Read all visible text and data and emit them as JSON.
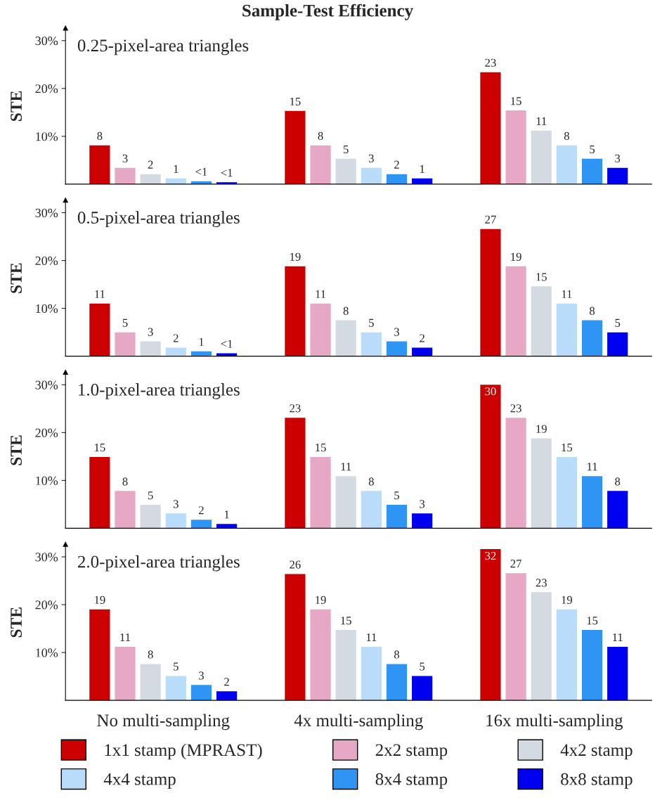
{
  "chart_data": [
    {
      "type": "bar",
      "title": "Sample-Test Efficiency",
      "ylabel": "STE",
      "annotations": [
        "0.25-pixel-area triangles"
      ],
      "categories": [
        null,
        null,
        null
      ],
      "ylim": [
        0,
        32.6
      ],
      "yticks": [
        {
          "value": 10,
          "label": "10%"
        },
        {
          "value": 20,
          "label": "20%"
        },
        {
          "value": 30,
          "label": "30%"
        }
      ],
      "tick_labels": "y",
      "legend": "bottom",
      "series": [
        {
          "name": "1x1 stamp (MPRAST)",
          "color": "#cc0000",
          "values": [
            8.1,
            15.3,
            23.4
          ],
          "value_labels": [
            "8",
            "15",
            "23"
          ]
        },
        {
          "name": "2x2 stamp",
          "color": "#e6a8c4",
          "values": [
            3.4,
            8.1,
            15.4
          ],
          "value_labels": [
            "3",
            "8",
            "15"
          ]
        },
        {
          "name": "4x2 stamp",
          "color": "#d3dae2",
          "values": [
            2.1,
            5.3,
            11.2
          ],
          "value_labels": [
            "2",
            "5",
            "11"
          ]
        },
        {
          "name": "4x4 stamp",
          "color": "#b8dcfa",
          "values": [
            1.2,
            3.4,
            8.1
          ],
          "value_labels": [
            "1",
            "3",
            "8"
          ]
        },
        {
          "name": "8x4 stamp",
          "color": "#2f95f5",
          "values": [
            0.6,
            2.1,
            5.3
          ],
          "value_labels": [
            "<1",
            "2",
            "5"
          ]
        },
        {
          "name": "8x8 stamp",
          "color": "#0000f0",
          "values": [
            0.4,
            1.2,
            3.4
          ],
          "value_labels": [
            "<1",
            "1",
            "3"
          ]
        }
      ]
    },
    {
      "type": "bar",
      "ylabel": "STE",
      "annotations": [
        "0.5-pixel-area triangles"
      ],
      "categories": [
        null,
        null,
        null
      ],
      "ylim": [
        0,
        32.6
      ],
      "yticks": [
        {
          "value": 10,
          "label": "10%"
        },
        {
          "value": 20,
          "label": "20%"
        },
        {
          "value": 30,
          "label": "30%"
        }
      ],
      "tick_labels": "y",
      "series": [
        {
          "color": "#cc0000",
          "values": [
            11.0,
            18.8,
            26.6
          ],
          "value_labels": [
            "11",
            "19",
            "27"
          ]
        },
        {
          "color": "#e6a8c4",
          "values": [
            5.0,
            11.0,
            18.8
          ],
          "value_labels": [
            "5",
            "11",
            "19"
          ]
        },
        {
          "color": "#d3dae2",
          "values": [
            3.1,
            7.5,
            14.6
          ],
          "value_labels": [
            "3",
            "8",
            "15"
          ]
        },
        {
          "color": "#b8dcfa",
          "values": [
            1.8,
            5.0,
            11.0
          ],
          "value_labels": [
            "2",
            "5",
            "11"
          ]
        },
        {
          "color": "#2f95f5",
          "values": [
            1.0,
            3.1,
            7.5
          ],
          "value_labels": [
            "1",
            "3",
            "8"
          ]
        },
        {
          "color": "#0000f0",
          "values": [
            0.6,
            1.8,
            5.0
          ],
          "value_labels": [
            "<1",
            "2",
            "5"
          ]
        }
      ]
    },
    {
      "type": "bar",
      "ylabel": "STE",
      "annotations": [
        "1.0-pixel-area triangles"
      ],
      "categories": [
        null,
        null,
        null
      ],
      "ylim": [
        0,
        32.6
      ],
      "yticks": [
        {
          "value": 10,
          "label": "10%"
        },
        {
          "value": 20,
          "label": "20%"
        },
        {
          "value": 30,
          "label": "30%"
        }
      ],
      "tick_labels": "y",
      "series": [
        {
          "color": "#cc0000",
          "values": [
            14.9,
            23.1,
            30.0
          ],
          "value_labels": [
            "15",
            "23",
            "30"
          ]
        },
        {
          "color": "#e6a8c4",
          "values": [
            7.8,
            14.9,
            23.1
          ],
          "value_labels": [
            "8",
            "15",
            "23"
          ]
        },
        {
          "color": "#d3dae2",
          "values": [
            4.9,
            10.9,
            18.8
          ],
          "value_labels": [
            "5",
            "11",
            "19"
          ]
        },
        {
          "color": "#b8dcfa",
          "values": [
            3.1,
            7.8,
            14.9
          ],
          "value_labels": [
            "3",
            "8",
            "15"
          ]
        },
        {
          "color": "#2f95f5",
          "values": [
            1.8,
            4.9,
            10.9
          ],
          "value_labels": [
            "2",
            "5",
            "11"
          ]
        },
        {
          "color": "#0000f0",
          "values": [
            0.9,
            3.1,
            7.8
          ],
          "value_labels": [
            "1",
            "3",
            "8"
          ]
        }
      ]
    },
    {
      "type": "bar",
      "ylabel": "STE",
      "annotations": [
        "2.0-pixel-area triangles"
      ],
      "categories": [
        "No multi-sampling",
        "4x multi-sampling",
        "16x multi-sampling"
      ],
      "ylim": [
        0,
        32.6
      ],
      "yticks": [
        {
          "value": 10,
          "label": "10%"
        },
        {
          "value": 20,
          "label": "20%"
        },
        {
          "value": 30,
          "label": "30%"
        }
      ],
      "series": [
        {
          "color": "#cc0000",
          "values": [
            19.0,
            26.4,
            31.6
          ],
          "value_labels": [
            "19",
            "26",
            "32"
          ]
        },
        {
          "color": "#e6a8c4",
          "values": [
            11.2,
            19.0,
            26.6
          ],
          "value_labels": [
            "11",
            "19",
            "27"
          ]
        },
        {
          "color": "#d3dae2",
          "values": [
            7.6,
            14.7,
            22.6
          ],
          "value_labels": [
            "8",
            "15",
            "23"
          ]
        },
        {
          "color": "#b8dcfa",
          "values": [
            5.1,
            11.2,
            19.0
          ],
          "value_labels": [
            "5",
            "11",
            "19"
          ]
        },
        {
          "color": "#2f95f5",
          "values": [
            3.2,
            7.6,
            14.7
          ],
          "value_labels": [
            "3",
            "8",
            "15"
          ]
        },
        {
          "color": "#0000f0",
          "values": [
            1.9,
            5.1,
            11.2
          ],
          "value_labels": [
            "2",
            "5",
            "11"
          ]
        }
      ]
    }
  ]
}
